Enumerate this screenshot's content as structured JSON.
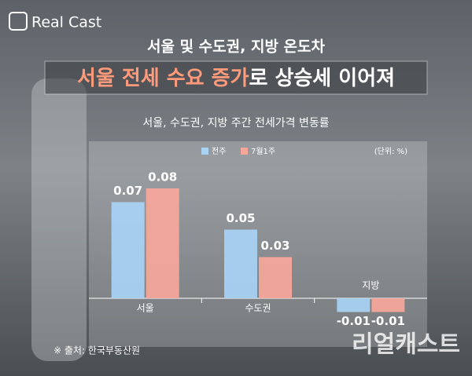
{
  "brand": "Real Cast",
  "title": "서울 및 수도권, 지방 온도차",
  "headline_highlight": "서울 전세 수요 증가",
  "headline_rest": "로 상승세 이어져",
  "source": "※ 출처: 한국부동산원",
  "watermark": "리얼캐스트",
  "chart_data": {
    "type": "bar",
    "title": "서울, 수도권, 지방 주간 전세가격 변동률",
    "unit_note": "(단위: %)",
    "categories": [
      "서울",
      "수도권",
      "지방"
    ],
    "series": [
      {
        "name": "전주",
        "color": "#a9d3f5",
        "values": [
          0.07,
          0.05,
          -0.01
        ]
      },
      {
        "name": "7월1주",
        "color": "#f7a79a",
        "values": [
          0.08,
          0.03,
          -0.01
        ]
      }
    ]
  }
}
